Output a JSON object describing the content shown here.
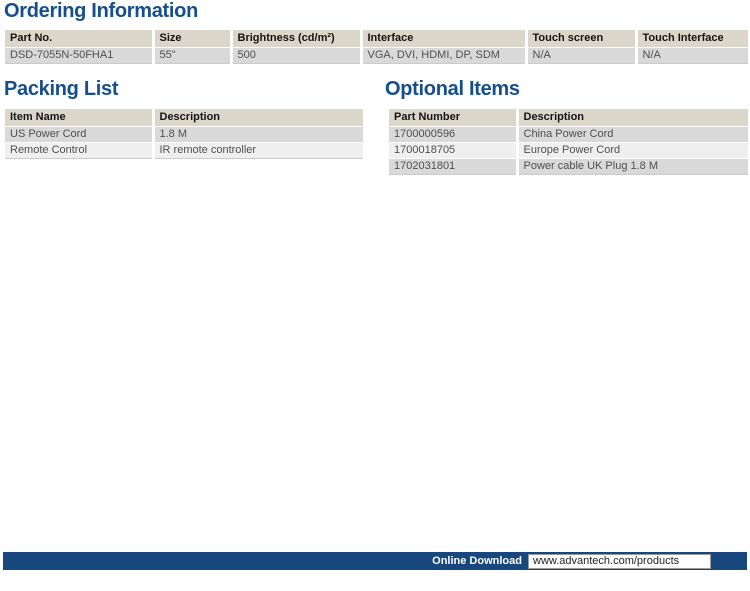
{
  "colors": {
    "heading_blue": "#164E8C",
    "footer_navy": "#17477D",
    "table_header_bg": "#DBD6CA",
    "row_dark": "#D9D9D9",
    "row_light": "#EFEFEF"
  },
  "sections": {
    "ordering": {
      "title": "Ordering Information",
      "table": {
        "headers": [
          "Part No.",
          "Size",
          "Brightness (cd/m²)",
          "Interface",
          "Touch screen",
          "Touch Interface"
        ],
        "rows": [
          [
            "DSD-7055N-50FHA1",
            "55\"",
            "500",
            "VGA, DVI, HDMI, DP, SDM",
            "N/A",
            "N/A"
          ]
        ]
      }
    },
    "packing": {
      "title": "Packing List",
      "table": {
        "headers": [
          "Item Name",
          "Description"
        ],
        "rows": [
          [
            "US Power Cord",
            "1.8 M"
          ],
          [
            "Remote Control",
            "IR remote controller"
          ]
        ]
      }
    },
    "optional": {
      "title": "Optional Items",
      "table": {
        "headers": [
          "Part Number",
          "Description"
        ],
        "rows": [
          [
            "1700000596",
            "China Power Cord"
          ],
          [
            "1700018705",
            "Europe Power Cord"
          ],
          [
            "1702031801",
            "Power cable UK Plug 1.8 M"
          ]
        ]
      }
    }
  },
  "footer": {
    "label": "Online Download",
    "url": "www.advantech.com/products"
  }
}
